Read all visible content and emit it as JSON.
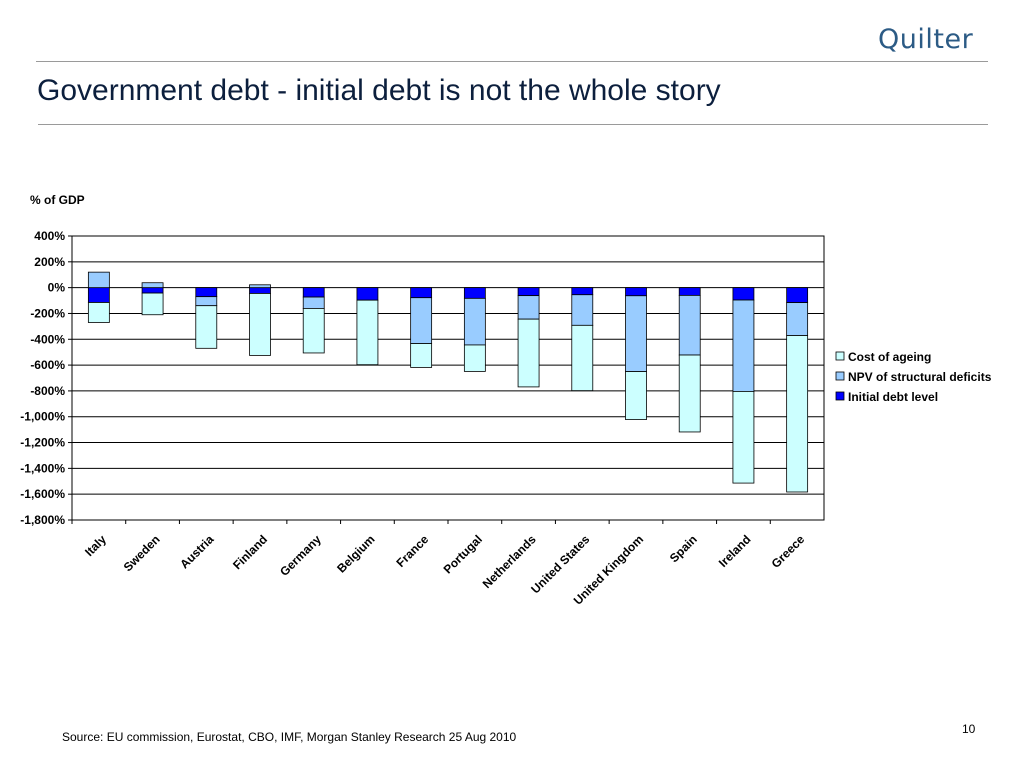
{
  "header": {
    "logo_text": "Quilter",
    "title": "Government debt - initial debt is not the whole story"
  },
  "footer": {
    "source": "Source: EU commission, Eurostat, CBO, IMF, Morgan Stanley Research 25 Aug 2010",
    "page_number": "10"
  },
  "chart_data": {
    "type": "bar",
    "stacked": true,
    "unit_label": "% of GDP",
    "ylim": [
      -1800,
      400
    ],
    "y_ticks": [
      400,
      200,
      0,
      -200,
      -400,
      -600,
      -800,
      -1000,
      -1200,
      -1400,
      -1600,
      -1800
    ],
    "y_tick_labels": [
      "400%",
      "200%",
      "0%",
      "-200%",
      "-400%",
      "-600%",
      "-800%",
      "-1,000%",
      "-1,200%",
      "-1,400%",
      "-1,600%",
      "-1,800%"
    ],
    "grid": "horizontal",
    "legend_position": "right",
    "categories": [
      "Italy",
      "Sweden",
      "Austria",
      "Finland",
      "Germany",
      "Belgium",
      "France",
      "Portugal",
      "Netherlands",
      "United States",
      "United Kingdom",
      "Spain",
      "Ireland",
      "Greece"
    ],
    "series": [
      {
        "name": "Initial debt level",
        "color": "#0000ff",
        "values": [
          -115,
          -42,
          -70,
          -45,
          -73,
          -97,
          -78,
          -83,
          -62,
          -55,
          -63,
          -60,
          -96,
          -116
        ]
      },
      {
        "name": "NPV of structural deficits",
        "color": "#99ccff",
        "values": [
          120,
          38,
          -70,
          22,
          -88,
          0,
          -355,
          -361,
          -182,
          -237,
          -587,
          -462,
          -708,
          -255
        ]
      },
      {
        "name": "Cost of ageing",
        "color": "#ccffff",
        "values": [
          -155,
          -168,
          -330,
          -480,
          -345,
          -500,
          -185,
          -205,
          -525,
          -506,
          -372,
          -596,
          -710,
          -1212
        ]
      }
    ],
    "legend_order": [
      "Cost of ageing",
      "NPV of structural deficits",
      "Initial debt level"
    ]
  }
}
